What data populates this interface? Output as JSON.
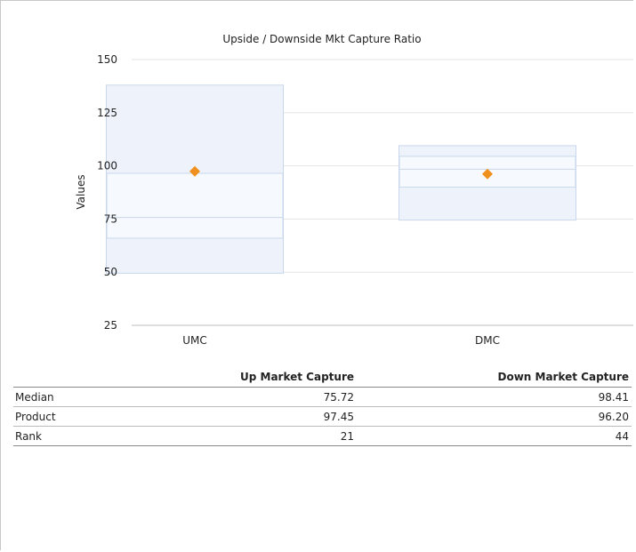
{
  "chart_data": {
    "type": "box",
    "title": "Upside / Downside Mkt Capture Ratio",
    "ylabel": "Values",
    "xlabel": "",
    "ylim": [
      25,
      150
    ],
    "y_ticks": [
      25,
      50,
      75,
      100,
      125,
      150
    ],
    "categories": [
      "UMC",
      "DMC"
    ],
    "boxes": [
      {
        "category": "UMC",
        "q0": 49.5,
        "q1": 66.0,
        "median": 75.72,
        "q3": 96.5,
        "q4": 138.0,
        "product": 97.45
      },
      {
        "category": "DMC",
        "q0": 74.5,
        "q1": 90.0,
        "median": 98.41,
        "q3": 104.5,
        "q4": 109.5,
        "product": 96.2
      }
    ],
    "grid": true,
    "colors": {
      "box_fill": "#eef3fb",
      "box_inner": "#f6f9fd",
      "box_stroke": "#c9d7ec",
      "marker": "#f0901e",
      "grid": "#e3e3e3"
    }
  },
  "table": {
    "columns": [
      "",
      "Up Market Capture",
      "Down Market Capture"
    ],
    "rows": [
      {
        "label": "Median",
        "values": [
          "75.72",
          "98.41"
        ]
      },
      {
        "label": "Product",
        "values": [
          "97.45",
          "96.20"
        ]
      },
      {
        "label": "Rank",
        "values": [
          "21",
          "44"
        ]
      }
    ]
  }
}
